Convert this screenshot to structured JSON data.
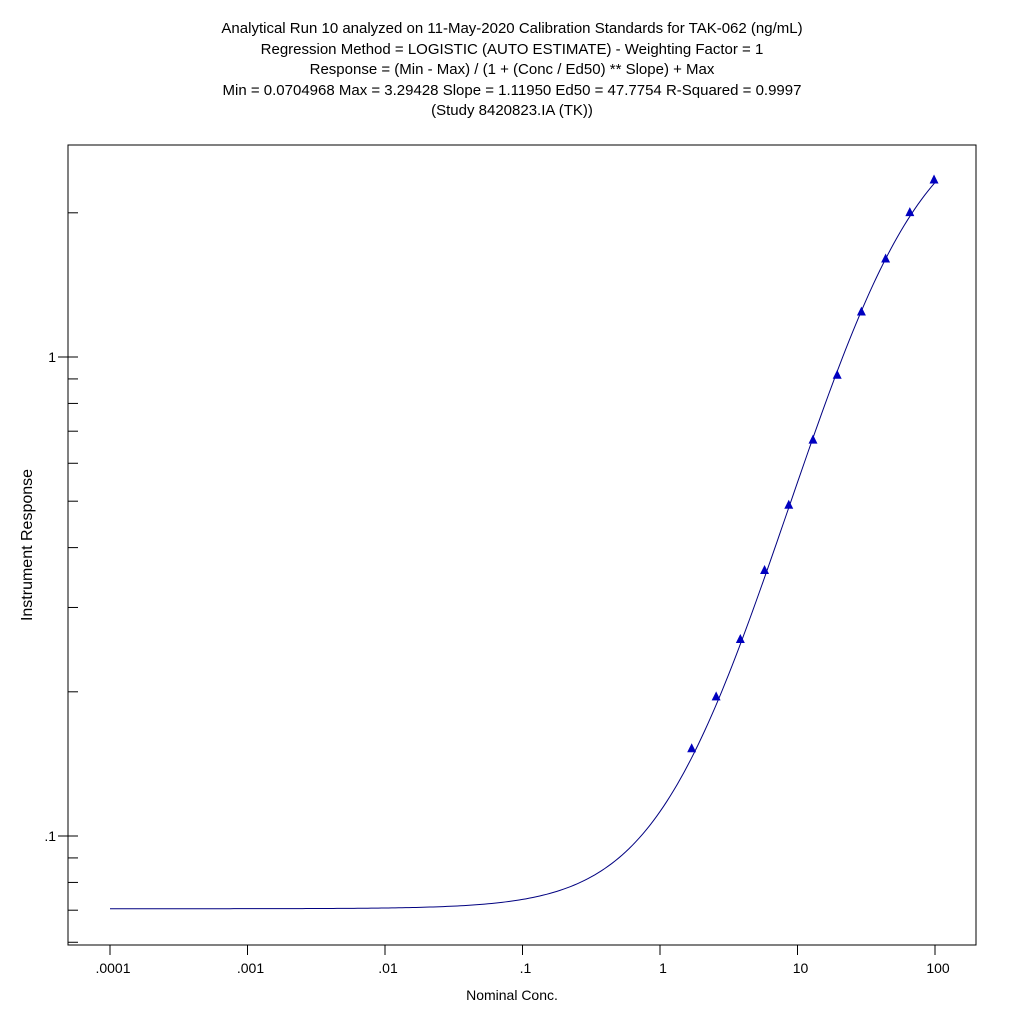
{
  "chart_data": {
    "type": "scatter",
    "title_lines": [
      "Analytical Run 10 analyzed on 11-May-2020 Calibration Standards for TAK-062 (ng/mL)",
      "Regression Method = LOGISTIC (AUTO ESTIMATE) - Weighting Factor = 1",
      "Response = (Min - Max) / (1 + (Conc / Ed50) ** Slope) + Max",
      "Min = 0.0704968 Max = 3.29428 Slope = 1.11950 Ed50 = 47.7754 R-Squared = 0.9997",
      "(Study 8420823.IA (TK))"
    ],
    "xlabel": "Nominal Conc.",
    "ylabel": "Instrument Response",
    "x_scale": "log",
    "y_scale": "log",
    "xlim": [
      0.0001,
      100
    ],
    "ylim": [
      0.055,
      2.8
    ],
    "x_tick_labels": [
      ".0001",
      ".001",
      ".01",
      ".1",
      "1",
      "10",
      "100"
    ],
    "x_tick_values": [
      0.0001,
      0.001,
      0.01,
      0.1,
      1,
      10,
      100
    ],
    "y_tick_labels": [
      ".1",
      "1"
    ],
    "y_tick_values": [
      0.1,
      1
    ],
    "grid": false,
    "fit": {
      "min": 0.0704968,
      "max": 3.29428,
      "slope": 1.1195,
      "ed50": 47.7754
    },
    "series": [
      {
        "marker": "triangle",
        "color": "#0000c0",
        "x": [
          1.7,
          2.56,
          3.84,
          5.76,
          8.64,
          12.96,
          19.44,
          29.16,
          43.74,
          65.6,
          98.4
        ],
        "y": [
          0.152,
          0.195,
          0.257,
          0.358,
          0.49,
          0.67,
          0.915,
          1.24,
          1.6,
          2.0,
          2.34
        ]
      }
    ],
    "curve_color": "#000080"
  }
}
